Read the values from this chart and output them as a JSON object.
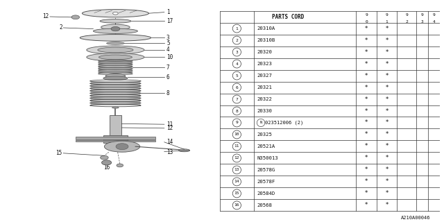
{
  "bg_color": "#ffffff",
  "table_header": "PARTS CORD",
  "col_headers": [
    "9\n0",
    "9\n1",
    "9\n2",
    "9\n3",
    "9\n4"
  ],
  "rows": [
    {
      "num": "1",
      "code": "20310A",
      "cols": [
        "*",
        "*",
        "",
        "",
        ""
      ]
    },
    {
      "num": "2",
      "code": "20310B",
      "cols": [
        "*",
        "*",
        "",
        "",
        ""
      ]
    },
    {
      "num": "3",
      "code": "20320",
      "cols": [
        "*",
        "*",
        "",
        "",
        ""
      ]
    },
    {
      "num": "4",
      "code": "20323",
      "cols": [
        "*",
        "*",
        "",
        "",
        ""
      ]
    },
    {
      "num": "5",
      "code": "20327",
      "cols": [
        "*",
        "*",
        "",
        "",
        ""
      ]
    },
    {
      "num": "6",
      "code": "20321",
      "cols": [
        "*",
        "*",
        "",
        "",
        ""
      ]
    },
    {
      "num": "7",
      "code": "20322",
      "cols": [
        "*",
        "*",
        "",
        "",
        ""
      ]
    },
    {
      "num": "8",
      "code": "20330",
      "cols": [
        "*",
        "*",
        "",
        "",
        ""
      ]
    },
    {
      "num": "9",
      "code": "N023512006 (2)",
      "cols": [
        "*",
        "*",
        "",
        "",
        ""
      ]
    },
    {
      "num": "10",
      "code": "20325",
      "cols": [
        "*",
        "*",
        "",
        "",
        ""
      ]
    },
    {
      "num": "11",
      "code": "20521A",
      "cols": [
        "*",
        "*",
        "",
        "",
        ""
      ]
    },
    {
      "num": "12",
      "code": "N350013",
      "cols": [
        "*",
        "*",
        "",
        "",
        ""
      ]
    },
    {
      "num": "13",
      "code": "20578G",
      "cols": [
        "*",
        "*",
        "",
        "",
        ""
      ]
    },
    {
      "num": "14",
      "code": "20578F",
      "cols": [
        "*",
        "*",
        "",
        "",
        ""
      ]
    },
    {
      "num": "15",
      "code": "20584D",
      "cols": [
        "*",
        "*",
        "",
        "",
        ""
      ]
    },
    {
      "num": "16",
      "code": "20568",
      "cols": [
        "*",
        "*",
        "",
        "",
        ""
      ]
    }
  ],
  "footnote": "A210A00046",
  "line_color": "#333333",
  "text_color": "#111111",
  "part_color": "#999999",
  "part_edge": "#555555"
}
